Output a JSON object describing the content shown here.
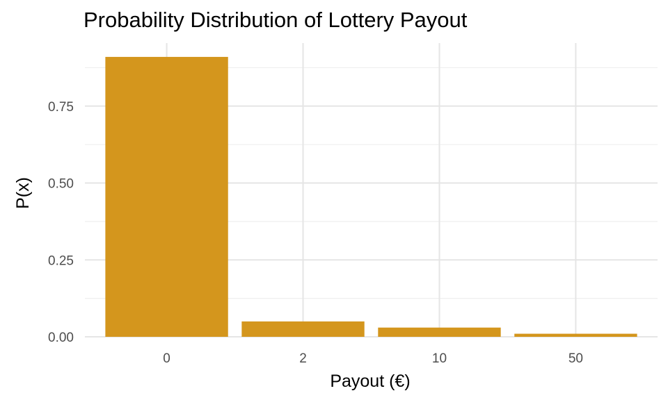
{
  "chart_data": {
    "type": "bar",
    "title": "Probability Distribution of Lottery Payout",
    "xlabel": "Payout (€)",
    "ylabel": "P(x)",
    "categories": [
      "0",
      "2",
      "10",
      "50"
    ],
    "values": [
      0.91,
      0.05,
      0.03,
      0.01
    ],
    "ylim": [
      0,
      0.955
    ],
    "yticks": [
      0,
      0.25,
      0.5,
      0.75
    ],
    "ytick_labels": [
      "0.00",
      "0.25",
      "0.50",
      "0.75"
    ],
    "bar_color": "#d4961d",
    "grid": true,
    "legend": "none"
  }
}
